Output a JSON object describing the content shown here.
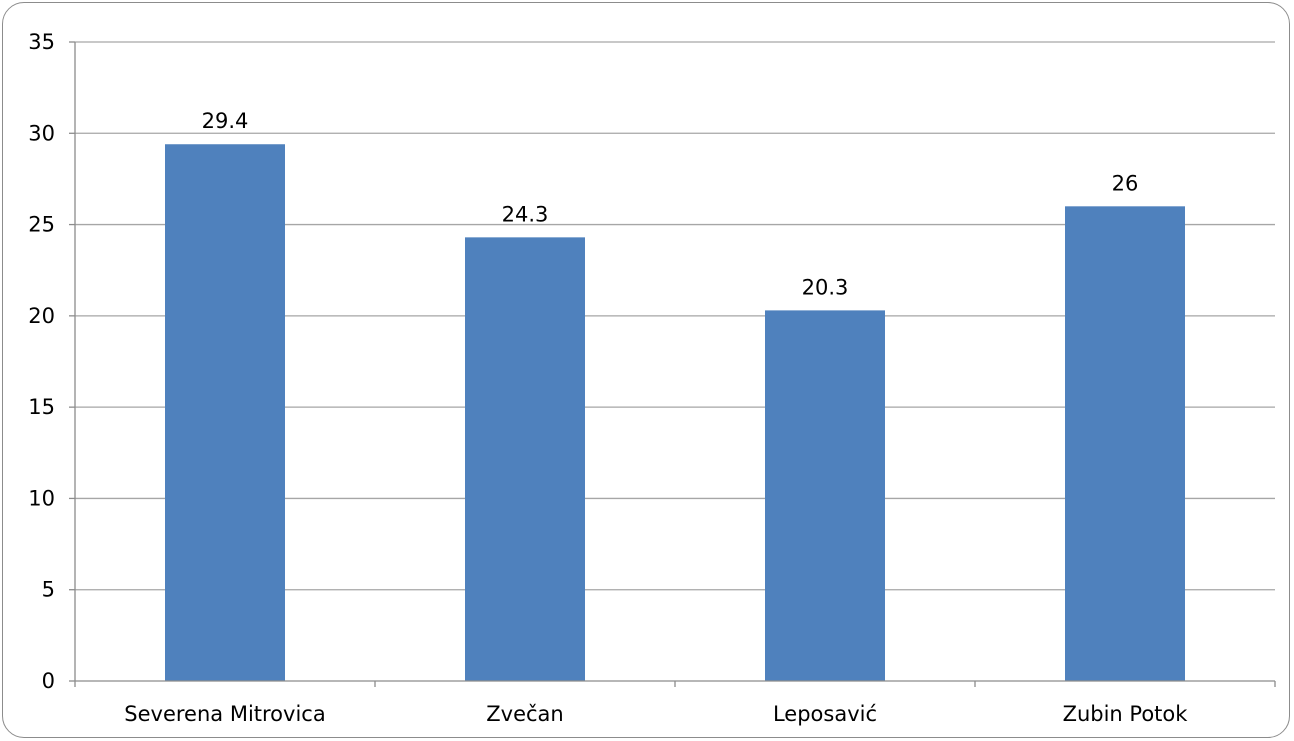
{
  "chart_data": {
    "type": "bar",
    "categories": [
      "Severena Mitrovica",
      "Zvečan",
      "Leposavić",
      "Zubin Potok"
    ],
    "values": [
      29.4,
      24.3,
      20.3,
      26
    ],
    "data_labels": [
      "29.4",
      "24.3",
      "20.3",
      "26"
    ],
    "ylim": [
      0,
      35
    ],
    "y_ticks": [
      0,
      5,
      10,
      15,
      20,
      25,
      30,
      35
    ],
    "title": "",
    "xlabel": "",
    "ylabel": "",
    "grid": true,
    "legend": "none",
    "colors": {
      "bar": "#4f81bd",
      "grid": "#a6a6a6",
      "axis": "#8c8c8c",
      "frame": "#8c8c8c"
    }
  }
}
